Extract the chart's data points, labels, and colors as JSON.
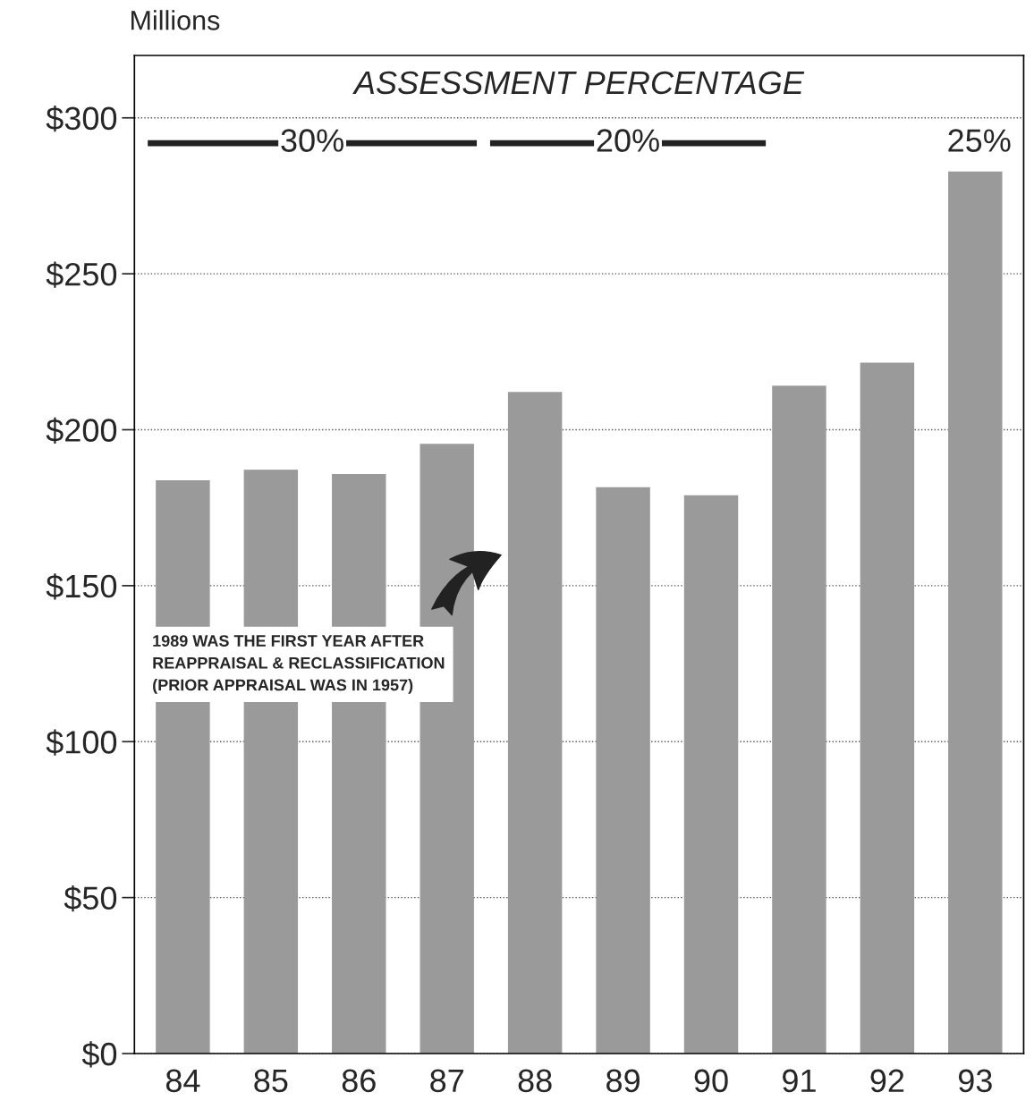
{
  "chart_data": {
    "type": "bar",
    "title": "ASSESSMENT PERCENTAGE",
    "ylabel": "Millions",
    "categories": [
      "84",
      "85",
      "86",
      "87",
      "88",
      "89",
      "90",
      "91",
      "92",
      "93"
    ],
    "values": [
      183.6,
      187,
      185.6,
      195.3,
      211.9,
      181.4,
      178.8,
      213.9,
      221.3,
      282.6
    ],
    "color": "#9a9a9a",
    "ylim": [
      0,
      320
    ],
    "yticks": [
      {
        "value": 0,
        "label": "$0"
      },
      {
        "value": 50,
        "label": "$50"
      },
      {
        "value": 100,
        "label": "$100"
      },
      {
        "value": 150,
        "label": "$150"
      },
      {
        "value": 200,
        "label": "$200"
      },
      {
        "value": 250,
        "label": "$250"
      },
      {
        "value": 300,
        "label": "$300"
      }
    ],
    "grid": "y",
    "annotations": [
      "30%",
      "20%",
      "25%",
      "1989 WAS THE FIRST YEAR AFTER\nREAPPRAISAL & RECLASSIFICATION\n(PRIOR APPRAISAL WAS IN 1957)"
    ]
  }
}
